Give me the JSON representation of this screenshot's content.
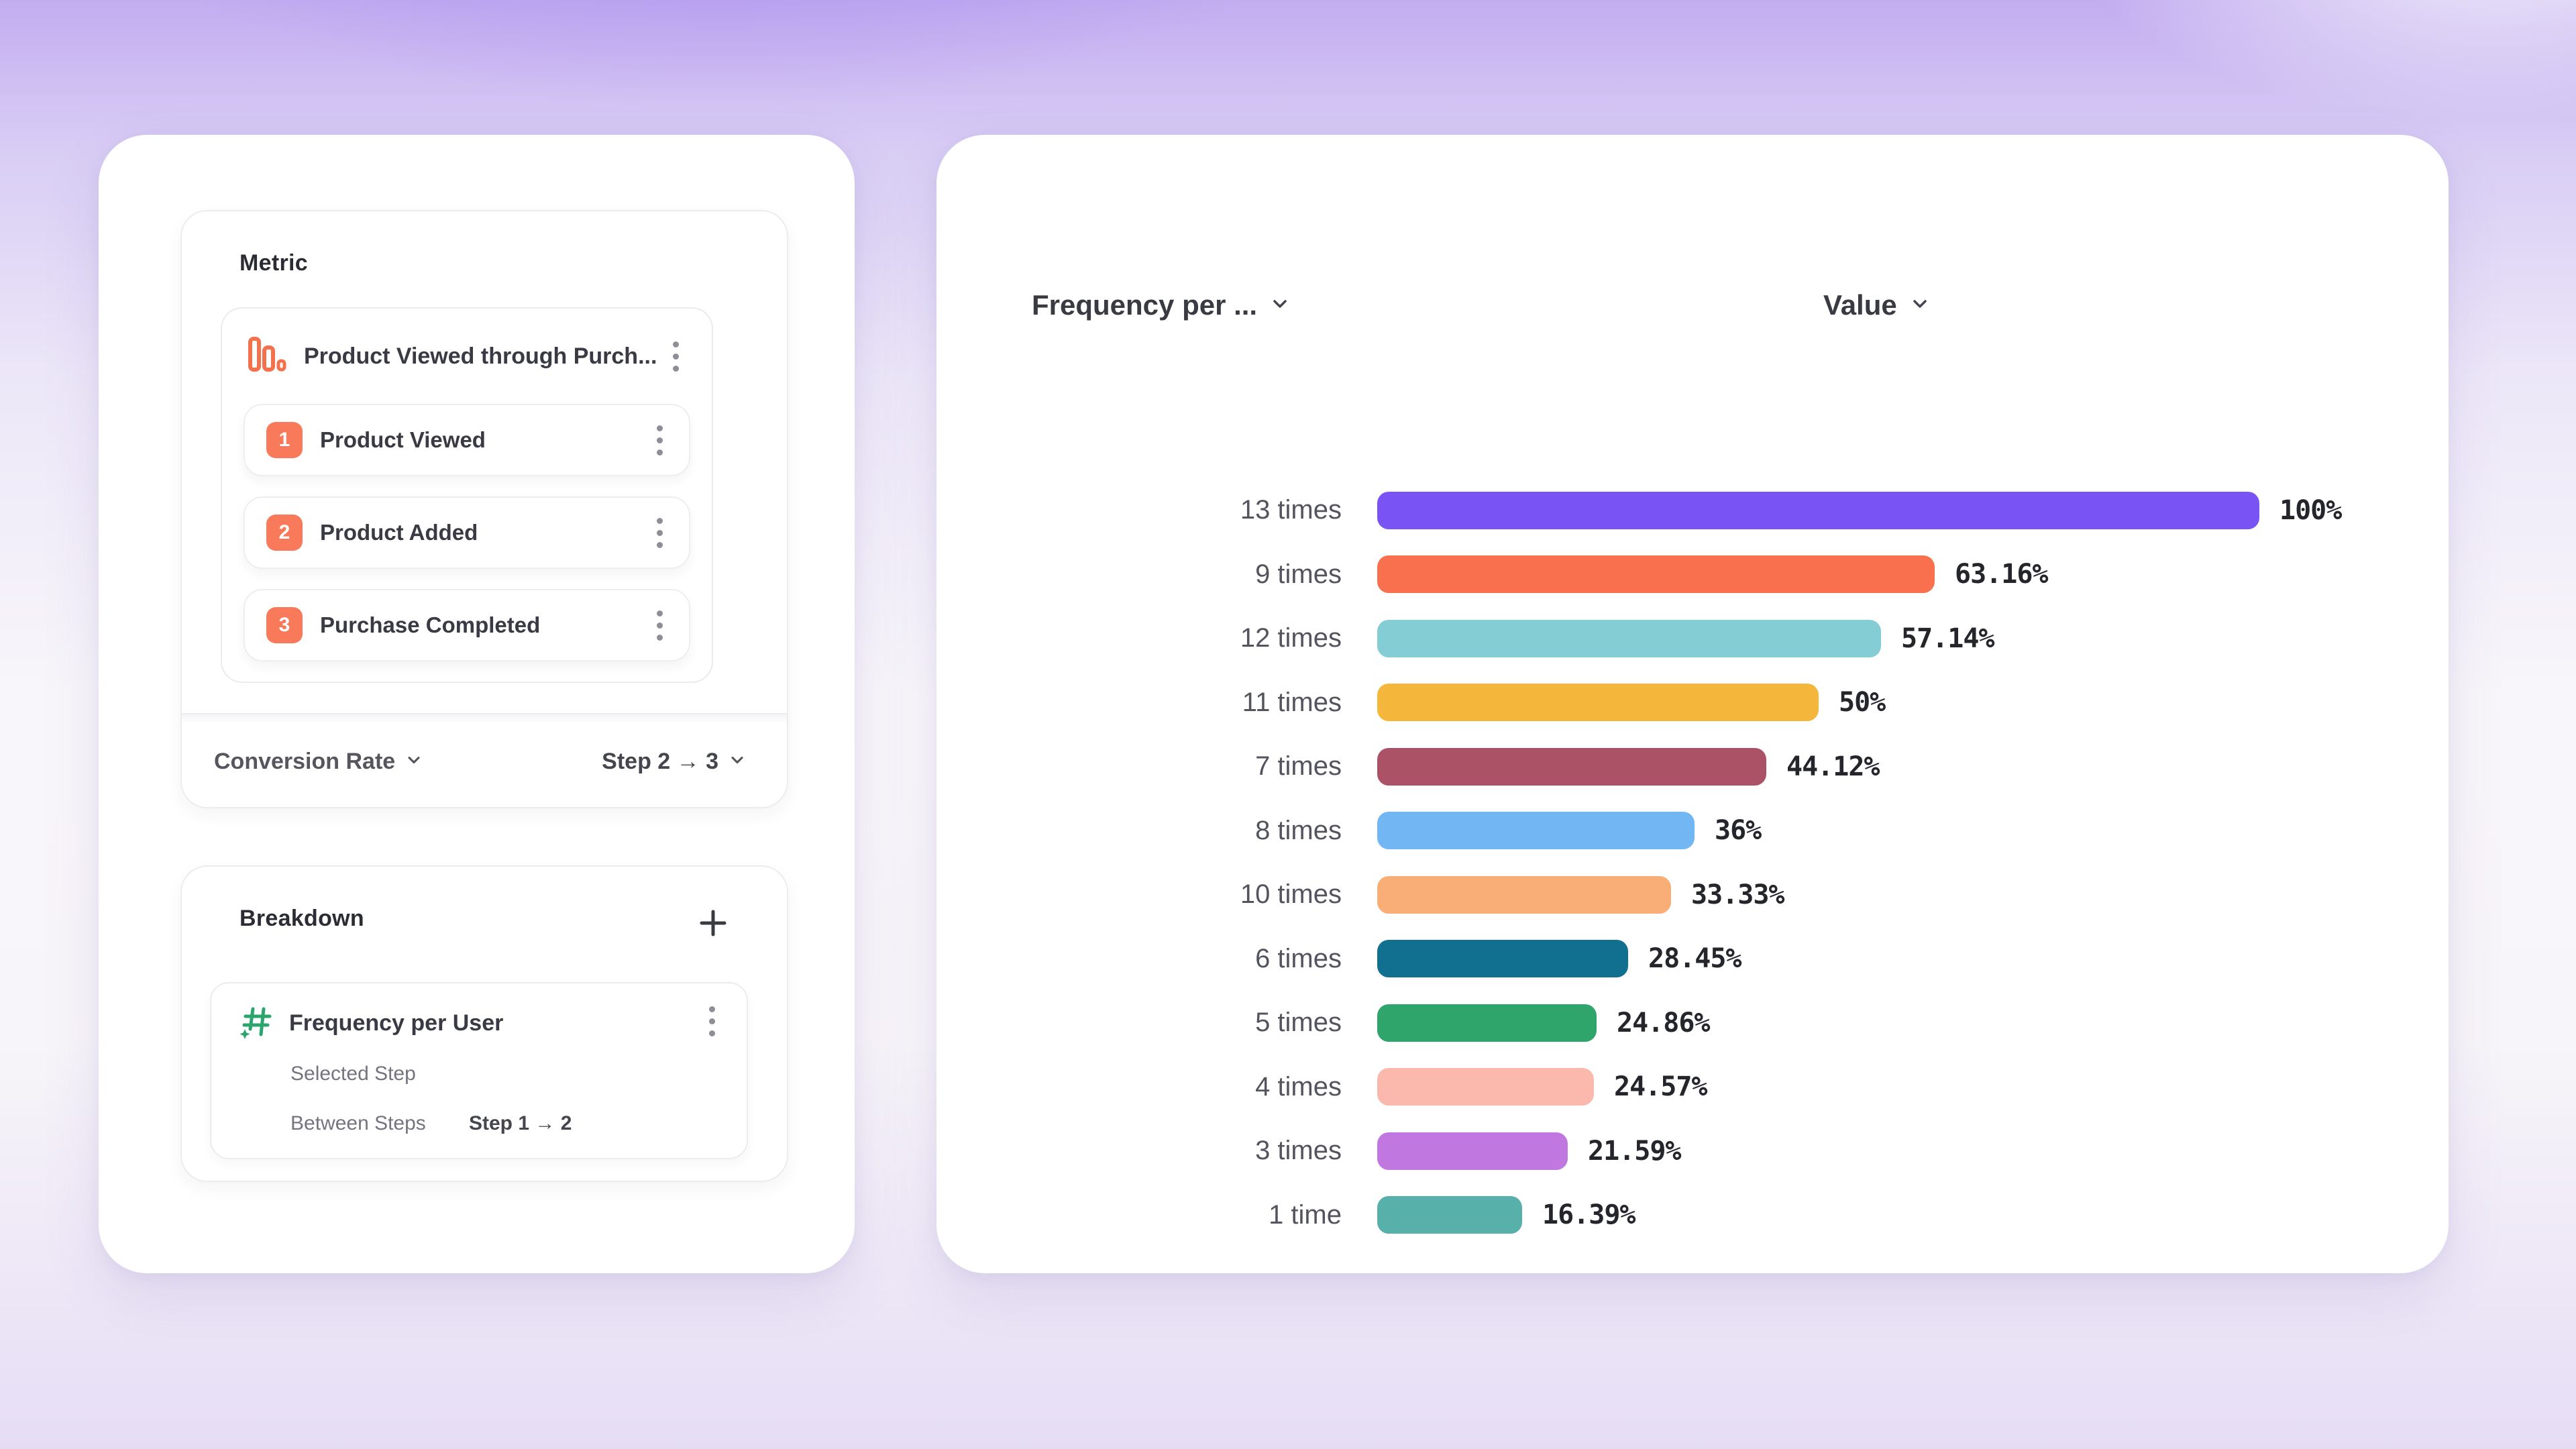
{
  "left_panel": {
    "metric_card": {
      "title": "Metric",
      "funnel": {
        "name": "Product Viewed through Purch...",
        "icon": "funnel-bars-icon",
        "icon_color": "#F4714E",
        "steps": [
          {
            "number": "1",
            "label": "Product Viewed"
          },
          {
            "number": "2",
            "label": "Product Added"
          },
          {
            "number": "3",
            "label": "Purchase Completed"
          }
        ],
        "step_badge_color": "#F87A5A"
      },
      "footer": {
        "conversion_label": "Conversion Rate",
        "step_range": "Step 2 → 3"
      }
    },
    "breakdown_card": {
      "title": "Breakdown",
      "add_button": "plus-icon",
      "item": {
        "name": "Frequency per User",
        "icon": "numeric-hash-icon",
        "icon_color": "#2CA46E",
        "selected_step_label": "Selected Step",
        "between_steps_label": "Between Steps",
        "between_steps_value": "Step 1 → 2"
      }
    }
  },
  "chart_panel": {
    "column_headers": {
      "breakdown": "Frequency per ...",
      "value": "Value"
    }
  },
  "chart_data": {
    "type": "bar",
    "orientation": "horizontal",
    "xlim": [
      0,
      100
    ],
    "grid": false,
    "categories": [
      "13 times",
      "9 times",
      "12 times",
      "11 times",
      "7 times",
      "8 times",
      "10 times",
      "6 times",
      "5 times",
      "4 times",
      "3 times",
      "1 time"
    ],
    "values": [
      100,
      63.16,
      57.14,
      50,
      44.12,
      36,
      33.33,
      28.45,
      24.86,
      24.57,
      21.59,
      16.39
    ],
    "value_labels": [
      "100%",
      "63.16%",
      "57.14%",
      "50%",
      "44.12%",
      "36%",
      "33.33%",
      "28.45%",
      "24.86%",
      "24.57%",
      "21.59%",
      "16.39%"
    ],
    "bar_colors": [
      "#7A53F5",
      "#F9704F",
      "#85CDD5",
      "#F4B73B",
      "#AC5266",
      "#72B7F3",
      "#FAAE77",
      "#11708F",
      "#30A56B",
      "#FBB9AE",
      "#C077DF",
      "#57B1AA"
    ]
  }
}
